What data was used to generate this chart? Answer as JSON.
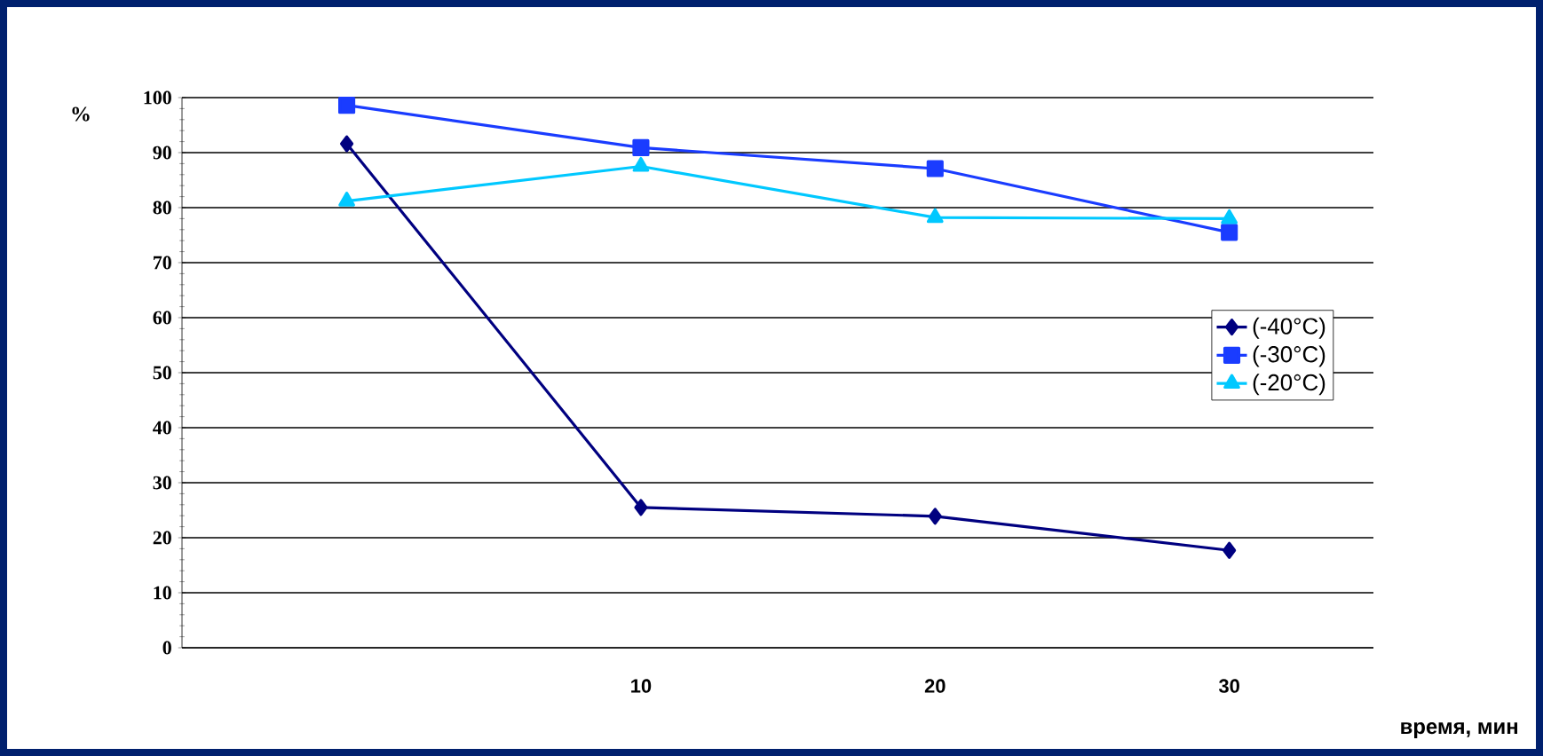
{
  "chart_data": {
    "type": "line",
    "xlabel": "время, мин",
    "ylabel": "%",
    "categories": [
      null,
      "10",
      "20",
      "30"
    ],
    "ylim": [
      0,
      100
    ],
    "yticks": [
      0,
      10,
      20,
      30,
      40,
      50,
      60,
      70,
      80,
      90,
      100
    ],
    "grid": "y",
    "legend": "right",
    "line_style": "solid",
    "series": [
      {
        "name": "(-40°C)",
        "color": "#000080",
        "marker": "diamond",
        "values": [
          91.6,
          25.5,
          23.9,
          17.7
        ]
      },
      {
        "name": "(-30°C)",
        "color": "#1a3cff",
        "marker": "square",
        "values": [
          98.6,
          90.9,
          87.1,
          75.5
        ]
      },
      {
        "name": "(-20°C)",
        "color": "#00c8ff",
        "marker": "triangle",
        "values": [
          81.2,
          87.5,
          78.2,
          78
        ]
      }
    ]
  }
}
